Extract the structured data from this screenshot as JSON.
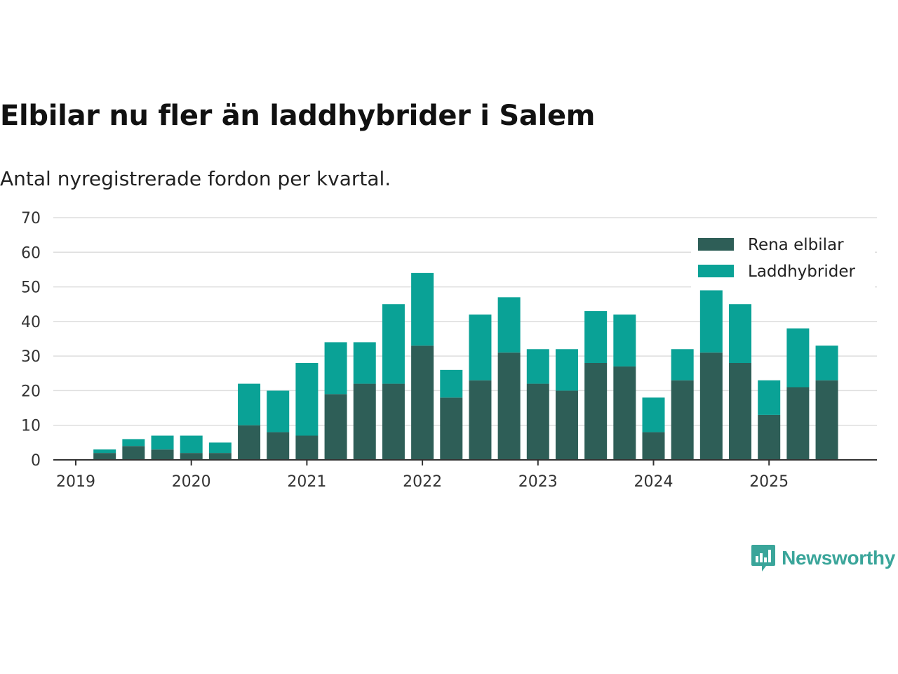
{
  "chart_data": {
    "type": "bar",
    "stacked": true,
    "title": "Elbilar nu fler än laddhybrider i Salem",
    "subtitle": "Antal nyregistrerade fordon per kvartal.",
    "categories": [
      "2019 Q1",
      "2019 Q2",
      "2019 Q3",
      "2019 Q4",
      "2020 Q1",
      "2020 Q2",
      "2020 Q3",
      "2020 Q4",
      "2021 Q1",
      "2021 Q2",
      "2021 Q3",
      "2021 Q4",
      "2022 Q1",
      "2022 Q2",
      "2022 Q3",
      "2022 Q4",
      "2023 Q1",
      "2023 Q2",
      "2023 Q3",
      "2023 Q4",
      "2024 Q1",
      "2024 Q2",
      "2024 Q3",
      "2024 Q4",
      "2025 Q1",
      "2025 Q2",
      "2025 Q3"
    ],
    "series": [
      {
        "name": "Rena elbilar",
        "color": "#2e5e57",
        "values": [
          2,
          4,
          3,
          2,
          2,
          10,
          8,
          7,
          19,
          22,
          22,
          33,
          18,
          23,
          31,
          22,
          20,
          28,
          27,
          8,
          23,
          31,
          28,
          13,
          21,
          23,
          0
        ]
      },
      {
        "name": "Laddhybrider",
        "color": "#0aa296",
        "values": [
          1,
          2,
          4,
          5,
          3,
          12,
          12,
          21,
          15,
          12,
          23,
          21,
          8,
          19,
          16,
          10,
          12,
          15,
          15,
          10,
          9,
          18,
          17,
          10,
          17,
          10,
          0
        ]
      }
    ],
    "x_tick_labels": [
      "2019",
      "2020",
      "2021",
      "2022",
      "2023",
      "2024",
      "2025"
    ],
    "y_ticks": [
      0,
      10,
      20,
      30,
      40,
      50,
      60,
      70
    ],
    "ylim": [
      0,
      70
    ],
    "legend_position": "top-right",
    "grid": true
  },
  "brand": {
    "name": "Newsworthy",
    "color": "#3aa59a"
  }
}
